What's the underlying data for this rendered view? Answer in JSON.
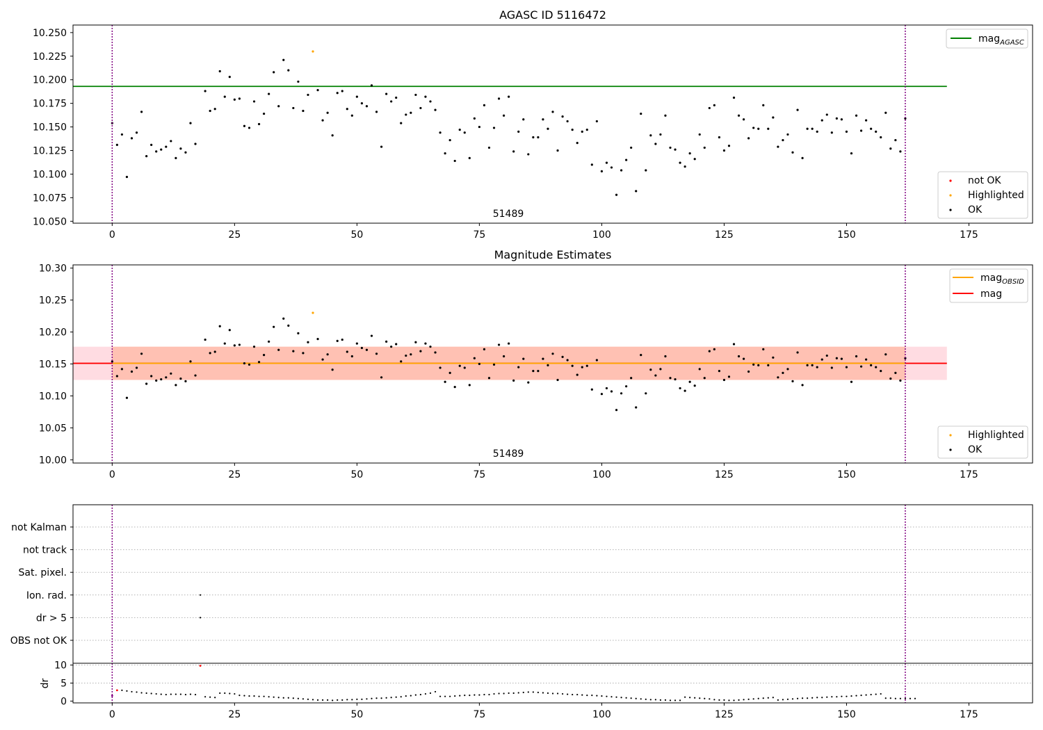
{
  "figure": {
    "background": "#ffffff"
  },
  "colors": {
    "ok": "#000000",
    "highlighted": "#ffa500",
    "not_ok": "#ff0000",
    "mag_agasc": "#008000",
    "mag_obsid": "#ffa500",
    "mag": "#ff0000",
    "band_outer": "#ffc0cb",
    "band_inner": "#ffa07a",
    "obs_boundary": "#800080"
  },
  "chart_data": [
    {
      "type": "scatter",
      "title": "AGASC ID 5116472",
      "xlim": [
        -8,
        188
      ],
      "ylim": [
        10.048,
        10.258
      ],
      "xticks": [
        0,
        25,
        50,
        75,
        100,
        125,
        150,
        175
      ],
      "yticks": [
        "10.050",
        "10.075",
        "10.100",
        "10.125",
        "10.150",
        "10.175",
        "10.200",
        "10.225",
        "10.250"
      ],
      "obsid_label": "51489",
      "obsid_label_x": 81,
      "obs_boundaries": [
        0,
        162
      ],
      "hlines": [
        {
          "name": "mag_AGASC",
          "y": 10.193,
          "xmin": -8,
          "xmax": 170.5,
          "color": "#008000"
        }
      ],
      "legend_lines": [
        {
          "base": "mag",
          "sub": "AGASC",
          "color": "#008000"
        }
      ],
      "legend_points": [
        {
          "label": "not OK",
          "color": "#ff0000"
        },
        {
          "label": "Highlighted",
          "color": "#ffa500"
        },
        {
          "label": "OK",
          "color": "#000000"
        }
      ],
      "highlighted": [
        {
          "x": 41,
          "y": 10.23
        }
      ],
      "y": [
        10.154,
        10.131,
        10.142,
        10.097,
        10.138,
        10.144,
        10.166,
        10.119,
        10.131,
        10.124,
        10.126,
        10.129,
        10.135,
        10.117,
        10.127,
        10.123,
        10.154,
        10.132,
        null,
        10.188,
        10.167,
        10.169,
        10.209,
        10.182,
        10.203,
        10.179,
        10.18,
        10.151,
        10.149,
        10.177,
        10.153,
        10.164,
        10.185,
        10.208,
        10.172,
        10.221,
        10.21,
        10.17,
        10.198,
        10.167,
        10.184,
        null,
        10.189,
        10.157,
        10.165,
        10.141,
        10.186,
        10.188,
        10.169,
        10.162,
        10.182,
        10.175,
        10.172,
        10.194,
        10.166,
        10.129,
        10.185,
        10.177,
        10.181,
        10.154,
        10.163,
        10.165,
        10.184,
        10.17,
        10.182,
        10.177,
        10.168,
        10.144,
        10.122,
        10.136,
        10.114,
        10.147,
        10.144,
        10.117,
        10.159,
        10.15,
        10.173,
        10.128,
        10.149,
        10.18,
        10.162,
        10.182,
        10.124,
        10.145,
        10.158,
        10.121,
        10.139,
        10.139,
        10.158,
        10.148,
        10.166,
        10.125,
        10.161,
        10.156,
        10.147,
        10.133,
        10.145,
        10.147,
        10.11,
        10.156,
        10.103,
        10.112,
        10.107,
        10.078,
        10.104,
        10.115,
        10.128,
        10.082,
        10.164,
        10.104,
        10.141,
        10.132,
        10.142,
        10.162,
        10.128,
        10.126,
        10.112,
        10.108,
        10.122,
        10.116,
        10.142,
        10.128,
        10.17,
        10.173,
        10.139,
        10.125,
        10.13,
        10.181,
        10.162,
        10.158,
        10.138,
        10.149,
        10.148,
        10.173,
        10.148,
        10.16,
        10.129,
        10.136,
        10.142,
        10.123,
        10.168,
        10.117,
        10.148,
        10.148,
        10.145,
        10.157,
        10.163,
        10.144,
        10.159,
        10.158,
        10.145,
        10.122,
        10.162,
        10.146,
        10.157,
        10.148,
        10.145,
        10.139,
        10.165,
        10.127,
        10.136,
        10.124,
        10.159
      ]
    },
    {
      "type": "scatter",
      "title": "Magnitude Estimates",
      "xlim": [
        -8,
        188
      ],
      "ylim": [
        9.995,
        10.305
      ],
      "xticks": [
        0,
        25,
        50,
        75,
        100,
        125,
        150,
        175
      ],
      "yticks": [
        "10.00",
        "10.05",
        "10.10",
        "10.15",
        "10.20",
        "10.25",
        "10.30"
      ],
      "obsid_label": "51489",
      "obsid_label_x": 81,
      "obs_boundaries": [
        0,
        162
      ],
      "band_outer": {
        "y0": 10.125,
        "y1": 10.177,
        "xmin": -8,
        "xmax": 170.5
      },
      "band_inner": {
        "y0": 10.125,
        "y1": 10.177,
        "xmin": 0,
        "xmax": 162
      },
      "hlines": [
        {
          "name": "mag",
          "y": 10.151,
          "xmin": -8,
          "xmax": 170.5,
          "color": "#ff0000"
        },
        {
          "name": "mag_OBSID",
          "y": 10.151,
          "xmin": 0,
          "xmax": 162,
          "color": "#ffa500"
        }
      ],
      "legend_lines": [
        {
          "base": "mag",
          "sub": "OBSID",
          "color": "#ffa500"
        },
        {
          "base": "mag",
          "sub": "",
          "color": "#ff0000"
        }
      ],
      "legend_points": [
        {
          "label": "Highlighted",
          "color": "#ffa500"
        },
        {
          "label": "OK",
          "color": "#000000"
        }
      ],
      "highlighted": [
        {
          "x": 41,
          "y": 10.23
        }
      ],
      "y": [
        10.154,
        10.131,
        10.142,
        10.097,
        10.138,
        10.144,
        10.166,
        10.119,
        10.131,
        10.124,
        10.126,
        10.129,
        10.135,
        10.117,
        10.127,
        10.123,
        10.154,
        10.132,
        null,
        10.188,
        10.167,
        10.169,
        10.209,
        10.182,
        10.203,
        10.179,
        10.18,
        10.151,
        10.149,
        10.177,
        10.153,
        10.164,
        10.185,
        10.208,
        10.172,
        10.221,
        10.21,
        10.17,
        10.198,
        10.167,
        10.184,
        null,
        10.189,
        10.157,
        10.165,
        10.141,
        10.186,
        10.188,
        10.169,
        10.162,
        10.182,
        10.175,
        10.172,
        10.194,
        10.166,
        10.129,
        10.185,
        10.177,
        10.181,
        10.154,
        10.163,
        10.165,
        10.184,
        10.17,
        10.182,
        10.177,
        10.168,
        10.144,
        10.122,
        10.136,
        10.114,
        10.147,
        10.144,
        10.117,
        10.159,
        10.15,
        10.173,
        10.128,
        10.149,
        10.18,
        10.162,
        10.182,
        10.124,
        10.145,
        10.158,
        10.121,
        10.139,
        10.139,
        10.158,
        10.148,
        10.166,
        10.125,
        10.161,
        10.156,
        10.147,
        10.133,
        10.145,
        10.147,
        10.11,
        10.156,
        10.103,
        10.112,
        10.107,
        10.078,
        10.104,
        10.115,
        10.128,
        10.082,
        10.164,
        10.104,
        10.141,
        10.132,
        10.142,
        10.162,
        10.128,
        10.126,
        10.112,
        10.108,
        10.122,
        10.116,
        10.142,
        10.128,
        10.17,
        10.173,
        10.139,
        10.125,
        10.13,
        10.181,
        10.162,
        10.158,
        10.138,
        10.149,
        10.148,
        10.173,
        10.148,
        10.16,
        10.129,
        10.136,
        10.142,
        10.123,
        10.168,
        10.117,
        10.148,
        10.148,
        10.145,
        10.157,
        10.163,
        10.144,
        10.159,
        10.158,
        10.145,
        10.122,
        10.162,
        10.146,
        10.157,
        10.148,
        10.145,
        10.139,
        10.165,
        10.127,
        10.136,
        10.124,
        10.159
      ]
    },
    {
      "type": "scatter",
      "title": "",
      "xlim": [
        -8,
        188
      ],
      "categories": [
        "not Kalman",
        "not track",
        "Sat. pixel.",
        "Ion. rad.",
        "dr > 5",
        "OBS not OK"
      ],
      "flags": [
        {
          "category": "Ion. rad.",
          "x": [
            18
          ]
        },
        {
          "category": "dr > 5",
          "x": [
            18
          ]
        }
      ],
      "obs_boundaries": [
        0,
        162
      ]
    },
    {
      "type": "scatter",
      "title": "",
      "ylabel": "dr",
      "xlim": [
        -8,
        188
      ],
      "ylim": [
        -0.5,
        10.5
      ],
      "xticks": [
        0,
        25,
        50,
        75,
        100,
        125,
        150,
        175
      ],
      "yticks": [
        0,
        5,
        10
      ],
      "obs_boundaries": [
        0,
        162
      ],
      "red_points": [
        {
          "x": 1,
          "y": 3.0
        },
        {
          "x": 18,
          "y": 9.8
        }
      ],
      "highlighted": [
        {
          "x": 0,
          "y": 1.5
        }
      ],
      "y": [
        null,
        null,
        3.0,
        2.8,
        2.6,
        2.5,
        2.3,
        2.2,
        2.1,
        2.0,
        1.9,
        1.8,
        1.9,
        1.9,
        1.9,
        1.8,
        1.9,
        1.8,
        null,
        1.2,
        1.1,
        1.0,
        2.2,
        2.2,
        2.1,
        2.0,
        1.6,
        1.5,
        1.4,
        1.4,
        1.3,
        1.3,
        1.2,
        1.1,
        1.0,
        0.9,
        0.9,
        0.8,
        0.7,
        0.6,
        0.5,
        0.4,
        0.3,
        0.3,
        0.3,
        0.2,
        0.3,
        0.3,
        0.4,
        0.4,
        0.5,
        0.5,
        0.6,
        0.7,
        0.8,
        0.8,
        0.9,
        1.0,
        1.1,
        1.2,
        1.4,
        1.5,
        1.7,
        1.8,
        2.0,
        2.2,
        2.6,
        1.3,
        1.3,
        1.3,
        1.4,
        1.5,
        1.6,
        1.6,
        1.7,
        1.7,
        1.8,
        1.8,
        2.0,
        2.1,
        2.1,
        2.2,
        2.2,
        2.3,
        2.4,
        2.5,
        2.5,
        2.4,
        2.3,
        2.2,
        2.1,
        2.1,
        2.0,
        1.9,
        1.8,
        1.8,
        1.7,
        1.6,
        1.6,
        1.5,
        1.4,
        1.3,
        1.2,
        1.1,
        1.0,
        0.9,
        0.8,
        0.7,
        0.6,
        0.5,
        0.4,
        0.4,
        0.3,
        0.3,
        0.2,
        0.2,
        0.2,
        1.1,
        1.0,
        0.9,
        0.8,
        0.7,
        0.6,
        0.4,
        0.3,
        0.3,
        0.2,
        0.2,
        0.3,
        0.4,
        0.5,
        0.6,
        0.7,
        0.8,
        0.9,
        1.0,
        0.3,
        0.4,
        0.5,
        0.6,
        0.7,
        0.8,
        0.8,
        0.9,
        1.0,
        1.0,
        1.1,
        1.2,
        1.2,
        1.3,
        1.3,
        1.4,
        1.5,
        1.6,
        1.7,
        1.8,
        1.9,
        2.0,
        0.8,
        0.8,
        0.7,
        0.7,
        0.7,
        0.7,
        0.7
      ]
    }
  ]
}
